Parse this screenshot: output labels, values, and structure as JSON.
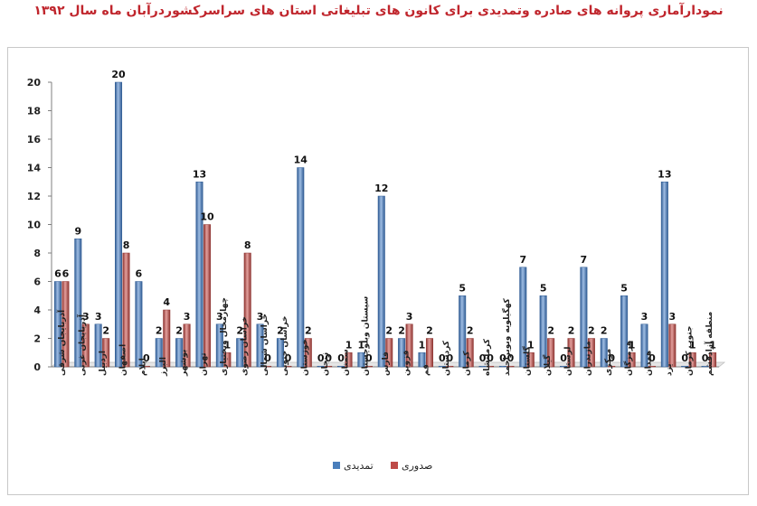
{
  "chart_data": {
    "type": "bar",
    "title": "نمودارآماری پروانه های صادره وتمدیدی برای کانون های تبلیغاتی استان های سراسرکشوردرآبان ماه سال ۱۳۹۲",
    "xlabel": "",
    "ylabel": "",
    "ylim": [
      0,
      20
    ],
    "yticks": [
      0,
      2,
      4,
      6,
      8,
      10,
      12,
      14,
      16,
      18,
      20
    ],
    "grid": false,
    "legend_position": "bottom",
    "categories": [
      "آذربایجان شرقی",
      "آذربایجان غربی",
      "اردبیل",
      "اصفهان",
      "ایلام",
      "البرز",
      "بوشهر",
      "تهران",
      "چهارمحال وبختیاری",
      "خراسان رضوی",
      "خراسان شمالی",
      "خراسان جنوبی",
      "خوزستان",
      "زنجان",
      "سمنان",
      "سیستان وبلوچستان",
      "فارس",
      "قزوین",
      "قم",
      "کردستان",
      "کرمان",
      "کرمانشاه",
      "کهگیلویه وبویراحمد",
      "گلستان",
      "گیلان",
      "لرستان",
      "مازندران",
      "مرکزی",
      "هرمزگان",
      "همدان",
      "یزد",
      "جنوب کرمان",
      "منطقه آزادقشم"
    ],
    "series": [
      {
        "name": "تمدیدی",
        "color": "#4a7ebb",
        "values": [
          6,
          9,
          3,
          20,
          6,
          2,
          2,
          13,
          3,
          2,
          3,
          2,
          14,
          0,
          0,
          1,
          12,
          2,
          1,
          0,
          5,
          0,
          0,
          7,
          5,
          0,
          7,
          2,
          5,
          3,
          13,
          0,
          0
        ]
      },
      {
        "name": "صدوری",
        "color": "#be4b48",
        "values": [
          6,
          3,
          2,
          8,
          0,
          4,
          3,
          10,
          1,
          8,
          0,
          0,
          2,
          0,
          1,
          0,
          2,
          3,
          2,
          0,
          2,
          0,
          0,
          1,
          2,
          2,
          2,
          0,
          1,
          0,
          3,
          1,
          1
        ]
      }
    ]
  }
}
